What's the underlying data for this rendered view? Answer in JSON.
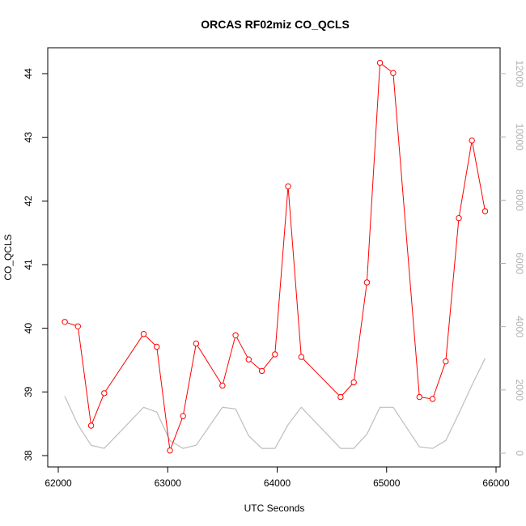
{
  "chart_data": {
    "type": "line",
    "title": "ORCAS RF02miz CO_QCLS",
    "xlabel": "UTC Seconds",
    "ylabel": "CO_QCLS",
    "xlim": [
      62000,
      66000
    ],
    "ylim": [
      38,
      44.3
    ],
    "y2lim": [
      0,
      12700
    ],
    "x_ticks": [
      62000,
      63000,
      64000,
      65000,
      66000
    ],
    "y_ticks": [
      38,
      39,
      40,
      41,
      42,
      43,
      44
    ],
    "y2_ticks": [
      0,
      2000,
      4000,
      6000,
      8000,
      10000,
      12000
    ],
    "colors": {
      "co": "#ff0000",
      "secondary": "#bebebe",
      "axis_right": "#b0b0b0"
    },
    "series": [
      {
        "axis": "left",
        "marker": "open-circle",
        "x": [
          62060,
          62180,
          62300,
          62420,
          62780,
          62900,
          63020,
          63140,
          63260,
          63500,
          63620,
          63740,
          63860,
          63980,
          64100,
          64220,
          64580,
          64700,
          64820,
          64940,
          65060,
          65300,
          65420,
          65540,
          65660,
          65780,
          65900
        ],
        "y": [
          40.1,
          40.03,
          38.47,
          38.98,
          39.91,
          39.71,
          38.08,
          38.62,
          39.76,
          39.1,
          39.89,
          39.51,
          39.33,
          39.59,
          42.23,
          39.55,
          38.92,
          39.15,
          40.72,
          44.17,
          44.01,
          38.92,
          38.89,
          39.48,
          41.73,
          42.95,
          41.84
        ]
      },
      {
        "axis": "right",
        "x": [
          62060,
          62180,
          62300,
          62420,
          62780,
          62900,
          63020,
          63140,
          63260,
          63500,
          63620,
          63740,
          63860,
          63980,
          64100,
          64220,
          64580,
          64700,
          64820,
          64940,
          65060,
          65300,
          65420,
          65540,
          65660,
          65780,
          65900
        ],
        "y": [
          1800,
          900,
          250,
          150,
          1450,
          1300,
          400,
          150,
          250,
          1450,
          1400,
          550,
          150,
          150,
          900,
          1450,
          150,
          150,
          600,
          1450,
          1450,
          200,
          150,
          400,
          1250,
          2150,
          3000
        ]
      }
    ]
  }
}
